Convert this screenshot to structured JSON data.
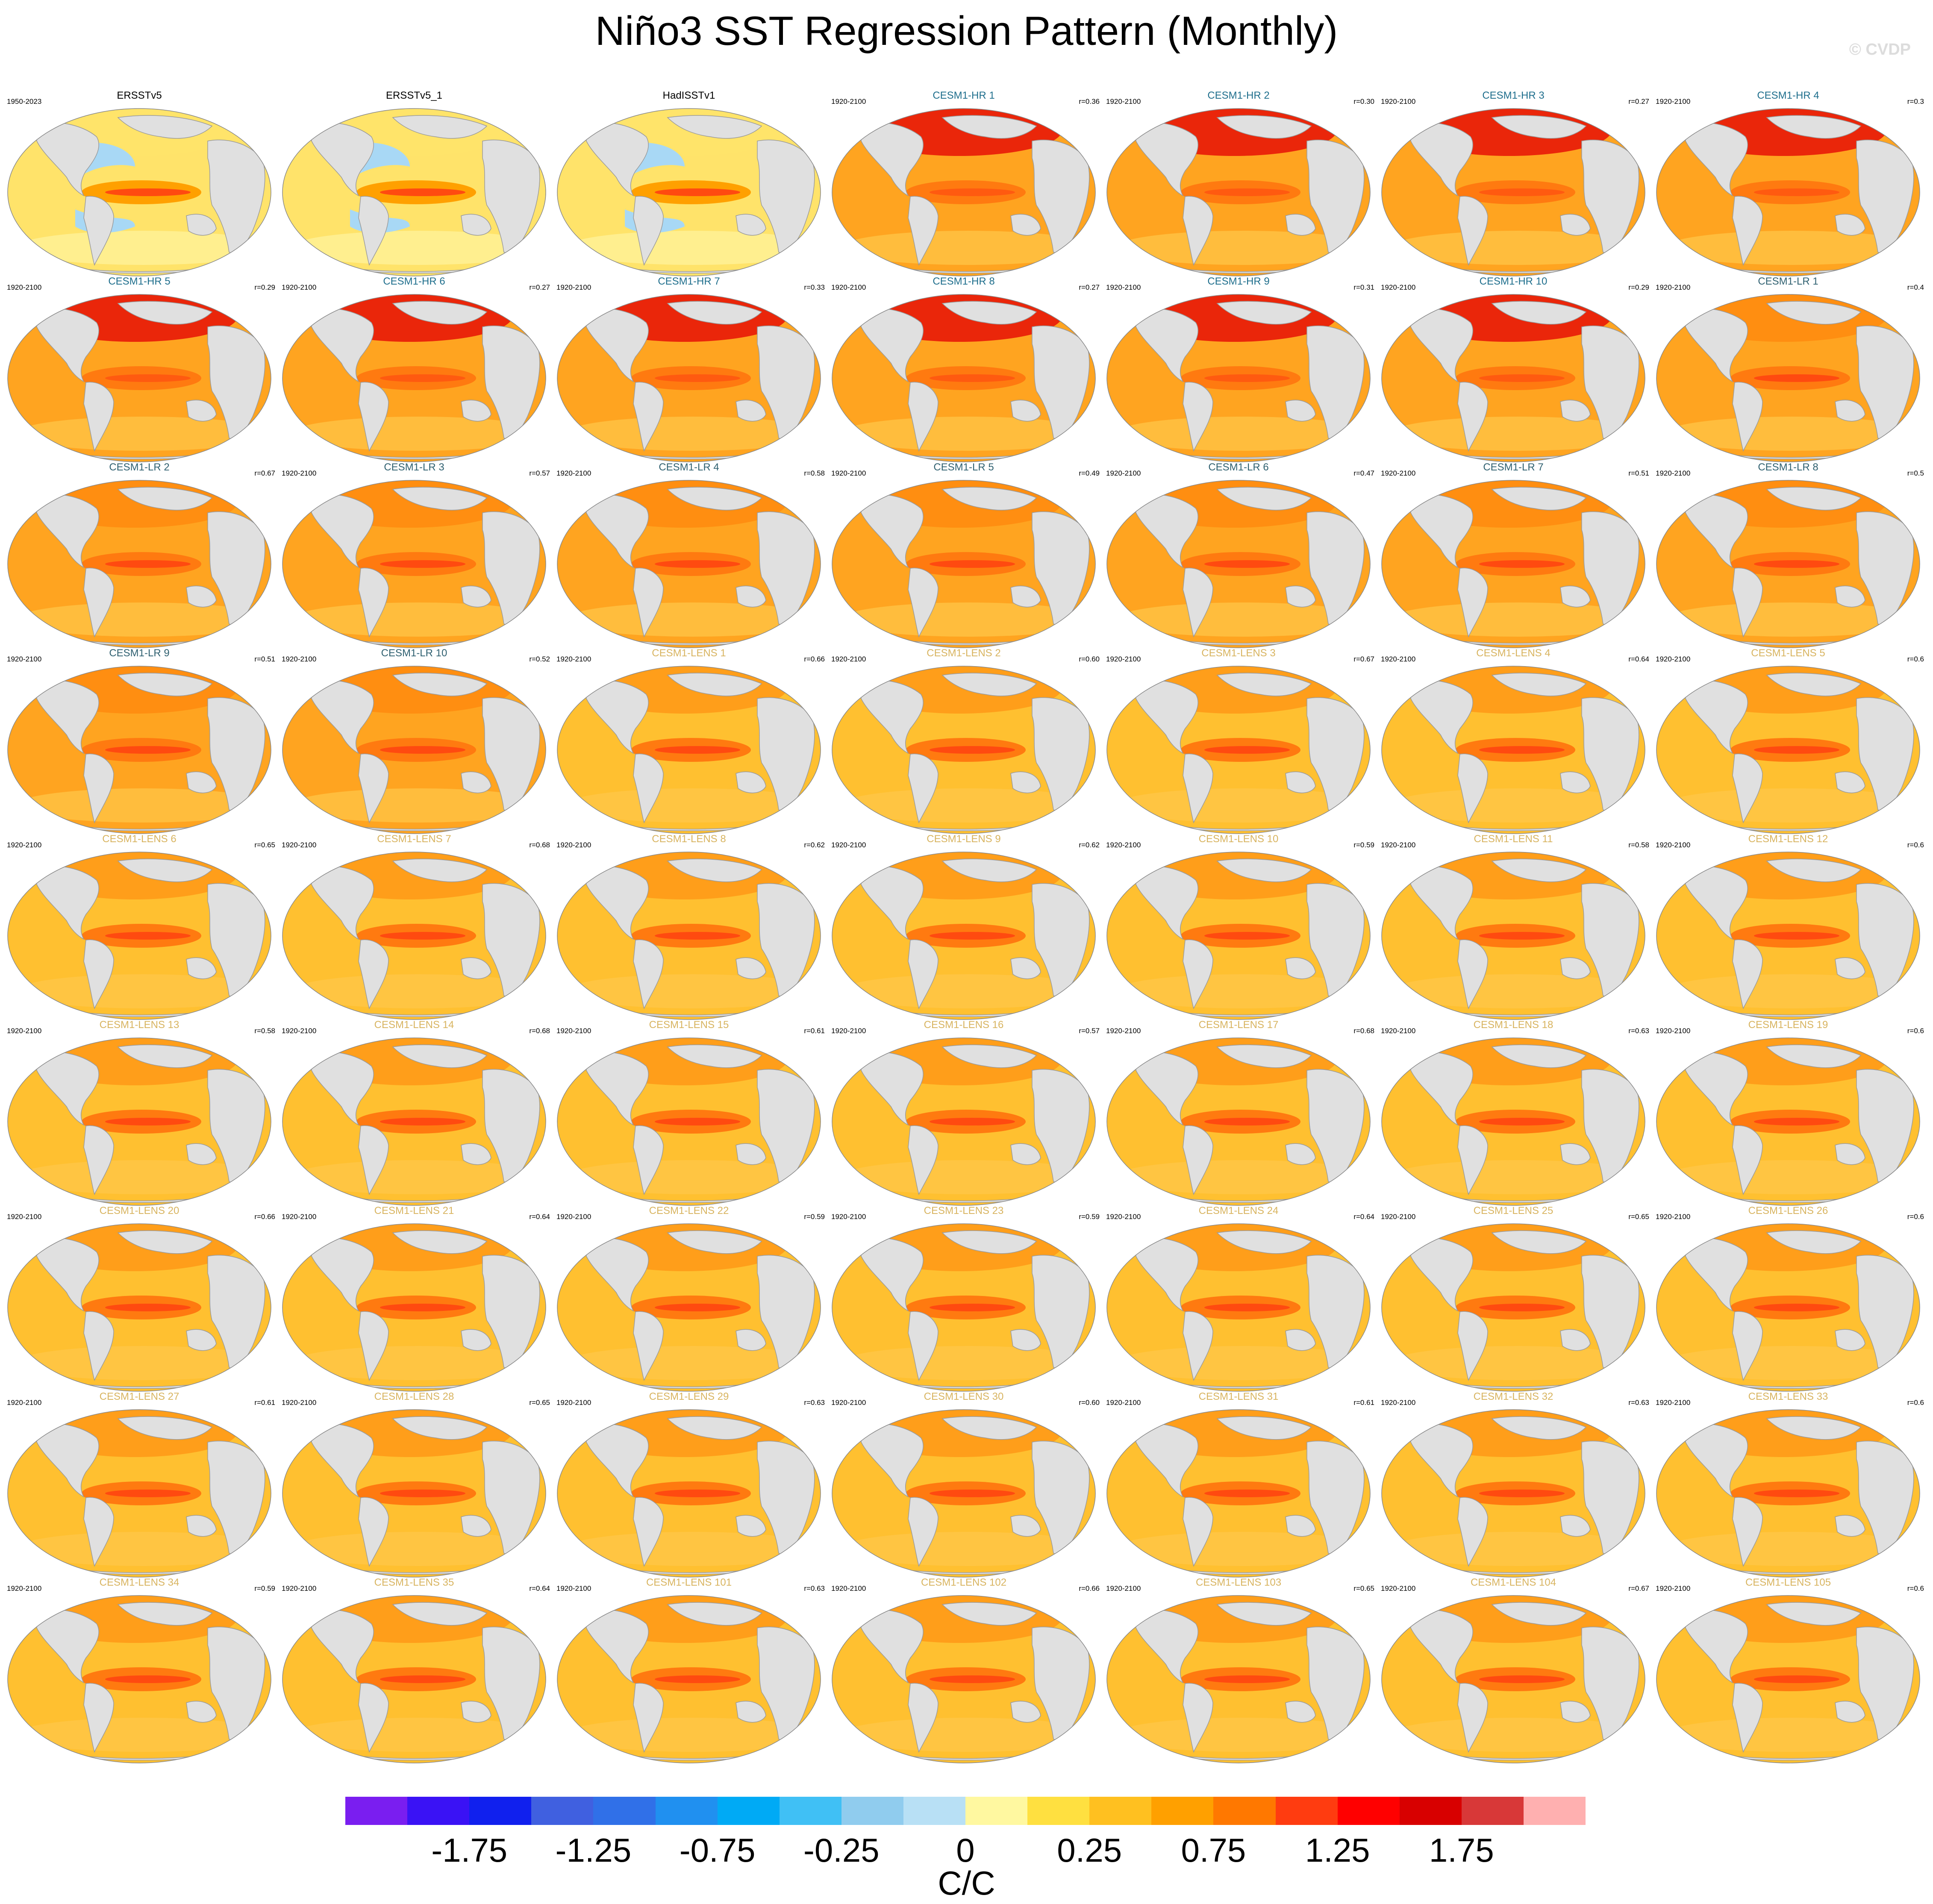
{
  "title": "Niño3 SST Regression Pattern (Monthly)",
  "watermark": "© CVDP",
  "chart_data": {
    "type": "heatmap",
    "title": "Niño3 SST Regression Pattern (Monthly)",
    "units": "C/C",
    "colorbar": {
      "colors": [
        "#7a1ef0",
        "#3a12f5",
        "#1020ee",
        "#4060e0",
        "#3070e8",
        "#2090f0",
        "#00aaf5",
        "#40c0f5",
        "#90ccee",
        "#b8e0f5",
        "#fff8a0",
        "#ffe040",
        "#ffc020",
        "#ffa000",
        "#ff7800",
        "#ff3c10",
        "#ff0000",
        "#d80000",
        "#d83838",
        "#ffb0b0"
      ],
      "tick_labels": [
        "-1.75",
        "-1.25",
        "-0.75",
        "-0.25",
        "0",
        "0.25",
        "0.75",
        "1.25",
        "1.75"
      ],
      "tick_boundaries": [
        1,
        3,
        5,
        7,
        9,
        11,
        13,
        15,
        17
      ]
    },
    "panels": [
      {
        "name": "ERSSTv5",
        "years": "1950-2023",
        "corr": "",
        "group": "obs"
      },
      {
        "name": "ERSSTv5_1",
        "years": "",
        "corr": "",
        "group": "obs"
      },
      {
        "name": "HadISSTv1",
        "years": "",
        "corr": "",
        "group": "obs"
      },
      {
        "name": "CESM1-HR 1",
        "years": "1920-2100",
        "corr": "r=0.36",
        "group": "hr"
      },
      {
        "name": "CESM1-HR 2",
        "years": "1920-2100",
        "corr": "r=0.30",
        "group": "hr"
      },
      {
        "name": "CESM1-HR 3",
        "years": "1920-2100",
        "corr": "r=0.27",
        "group": "hr"
      },
      {
        "name": "CESM1-HR 4",
        "years": "1920-2100",
        "corr": "r=0.3",
        "group": "hr"
      },
      {
        "name": "CESM1-HR 5",
        "years": "1920-2100",
        "corr": "r=0.29",
        "group": "hr"
      },
      {
        "name": "CESM1-HR 6",
        "years": "1920-2100",
        "corr": "r=0.27",
        "group": "hr"
      },
      {
        "name": "CESM1-HR 7",
        "years": "1920-2100",
        "corr": "r=0.33",
        "group": "hr"
      },
      {
        "name": "CESM1-HR 8",
        "years": "1920-2100",
        "corr": "r=0.27",
        "group": "hr"
      },
      {
        "name": "CESM1-HR 9",
        "years": "1920-2100",
        "corr": "r=0.31",
        "group": "hr"
      },
      {
        "name": "CESM1-HR 10",
        "years": "1920-2100",
        "corr": "r=0.29",
        "group": "hr"
      },
      {
        "name": "CESM1-LR 1",
        "years": "1920-2100",
        "corr": "r=0.4",
        "group": "lr"
      },
      {
        "name": "CESM1-LR 2",
        "years": "",
        "corr": "r=0.67",
        "group": "lr"
      },
      {
        "name": "CESM1-LR 3",
        "years": "1920-2100",
        "corr": "r=0.57",
        "group": "lr"
      },
      {
        "name": "CESM1-LR 4",
        "years": "1920-2100",
        "corr": "r=0.58",
        "group": "lr"
      },
      {
        "name": "CESM1-LR 5",
        "years": "1920-2100",
        "corr": "r=0.49",
        "group": "lr"
      },
      {
        "name": "CESM1-LR 6",
        "years": "1920-2100",
        "corr": "r=0.47",
        "group": "lr"
      },
      {
        "name": "CESM1-LR 7",
        "years": "1920-2100",
        "corr": "r=0.51",
        "group": "lr"
      },
      {
        "name": "CESM1-LR 8",
        "years": "1920-2100",
        "corr": "r=0.5",
        "group": "lr"
      },
      {
        "name": "CESM1-LR 9",
        "years": "1920-2100",
        "corr": "r=0.51",
        "group": "lr"
      },
      {
        "name": "CESM1-LR 10",
        "years": "1920-2100",
        "corr": "r=0.52",
        "group": "lr"
      },
      {
        "name": "CESM1-LENS 1",
        "years": "1920-2100",
        "corr": "r=0.66",
        "group": "lens"
      },
      {
        "name": "CESM1-LENS 2",
        "years": "1920-2100",
        "corr": "r=0.60",
        "group": "lens"
      },
      {
        "name": "CESM1-LENS 3",
        "years": "1920-2100",
        "corr": "r=0.67",
        "group": "lens"
      },
      {
        "name": "CESM1-LENS 4",
        "years": "1920-2100",
        "corr": "r=0.64",
        "group": "lens"
      },
      {
        "name": "CESM1-LENS 5",
        "years": "1920-2100",
        "corr": "r=0.6",
        "group": "lens"
      },
      {
        "name": "CESM1-LENS 6",
        "years": "1920-2100",
        "corr": "r=0.65",
        "group": "lens"
      },
      {
        "name": "CESM1-LENS 7",
        "years": "1920-2100",
        "corr": "r=0.68",
        "group": "lens"
      },
      {
        "name": "CESM1-LENS 8",
        "years": "1920-2100",
        "corr": "r=0.62",
        "group": "lens"
      },
      {
        "name": "CESM1-LENS 9",
        "years": "1920-2100",
        "corr": "r=0.62",
        "group": "lens"
      },
      {
        "name": "CESM1-LENS 10",
        "years": "1920-2100",
        "corr": "r=0.59",
        "group": "lens"
      },
      {
        "name": "CESM1-LENS 11",
        "years": "1920-2100",
        "corr": "r=0.58",
        "group": "lens"
      },
      {
        "name": "CESM1-LENS 12",
        "years": "1920-2100",
        "corr": "r=0.6",
        "group": "lens"
      },
      {
        "name": "CESM1-LENS 13",
        "years": "1920-2100",
        "corr": "r=0.58",
        "group": "lens"
      },
      {
        "name": "CESM1-LENS 14",
        "years": "1920-2100",
        "corr": "r=0.68",
        "group": "lens"
      },
      {
        "name": "CESM1-LENS 15",
        "years": "1920-2100",
        "corr": "r=0.61",
        "group": "lens"
      },
      {
        "name": "CESM1-LENS 16",
        "years": "1920-2100",
        "corr": "r=0.57",
        "group": "lens"
      },
      {
        "name": "CESM1-LENS 17",
        "years": "1920-2100",
        "corr": "r=0.68",
        "group": "lens"
      },
      {
        "name": "CESM1-LENS 18",
        "years": "1920-2100",
        "corr": "r=0.63",
        "group": "lens"
      },
      {
        "name": "CESM1-LENS 19",
        "years": "1920-2100",
        "corr": "r=0.6",
        "group": "lens"
      },
      {
        "name": "CESM1-LENS 20",
        "years": "1920-2100",
        "corr": "r=0.66",
        "group": "lens"
      },
      {
        "name": "CESM1-LENS 21",
        "years": "1920-2100",
        "corr": "r=0.64",
        "group": "lens"
      },
      {
        "name": "CESM1-LENS 22",
        "years": "1920-2100",
        "corr": "r=0.59",
        "group": "lens"
      },
      {
        "name": "CESM1-LENS 23",
        "years": "1920-2100",
        "corr": "r=0.59",
        "group": "lens"
      },
      {
        "name": "CESM1-LENS 24",
        "years": "1920-2100",
        "corr": "r=0.64",
        "group": "lens"
      },
      {
        "name": "CESM1-LENS 25",
        "years": "1920-2100",
        "corr": "r=0.65",
        "group": "lens"
      },
      {
        "name": "CESM1-LENS 26",
        "years": "1920-2100",
        "corr": "r=0.6",
        "group": "lens"
      },
      {
        "name": "CESM1-LENS 27",
        "years": "1920-2100",
        "corr": "r=0.61",
        "group": "lens"
      },
      {
        "name": "CESM1-LENS 28",
        "years": "1920-2100",
        "corr": "r=0.65",
        "group": "lens"
      },
      {
        "name": "CESM1-LENS 29",
        "years": "1920-2100",
        "corr": "r=0.63",
        "group": "lens"
      },
      {
        "name": "CESM1-LENS 30",
        "years": "1920-2100",
        "corr": "r=0.60",
        "group": "lens"
      },
      {
        "name": "CESM1-LENS 31",
        "years": "1920-2100",
        "corr": "r=0.61",
        "group": "lens"
      },
      {
        "name": "CESM1-LENS 32",
        "years": "1920-2100",
        "corr": "r=0.63",
        "group": "lens"
      },
      {
        "name": "CESM1-LENS 33",
        "years": "1920-2100",
        "corr": "r=0.6",
        "group": "lens"
      },
      {
        "name": "CESM1-LENS 34",
        "years": "1920-2100",
        "corr": "r=0.59",
        "group": "lens"
      },
      {
        "name": "CESM1-LENS 35",
        "years": "1920-2100",
        "corr": "r=0.64",
        "group": "lens"
      },
      {
        "name": "CESM1-LENS 101",
        "years": "1920-2100",
        "corr": "r=0.63",
        "group": "lens"
      },
      {
        "name": "CESM1-LENS 102",
        "years": "1920-2100",
        "corr": "r=0.66",
        "group": "lens"
      },
      {
        "name": "CESM1-LENS 103",
        "years": "1920-2100",
        "corr": "r=0.65",
        "group": "lens"
      },
      {
        "name": "CESM1-LENS 104",
        "years": "1920-2100",
        "corr": "r=0.67",
        "group": "lens"
      },
      {
        "name": "CESM1-LENS 105",
        "years": "1920-2100",
        "corr": "r=0.6",
        "group": "lens"
      }
    ]
  },
  "group_styles": {
    "obs": {
      "title_color": "#000000",
      "ocean": "#ffe36a",
      "band": "#ff4a10",
      "north": "#ffe36a",
      "cool": "#a8d8f5"
    },
    "hr": {
      "title_color": "#1e6e8c",
      "ocean": "#ffa420",
      "band": "#ff5a10",
      "north": "#e81808",
      "cool": ""
    },
    "lr": {
      "title_color": "#2f6070",
      "ocean": "#ffa420",
      "band": "#ff4a10",
      "north": "#ff8c10",
      "cool": ""
    },
    "lens": {
      "title_color": "#d8b460",
      "ocean": "#ffc030",
      "band": "#ff4a10",
      "north": "#ff9a18",
      "cool": ""
    }
  }
}
